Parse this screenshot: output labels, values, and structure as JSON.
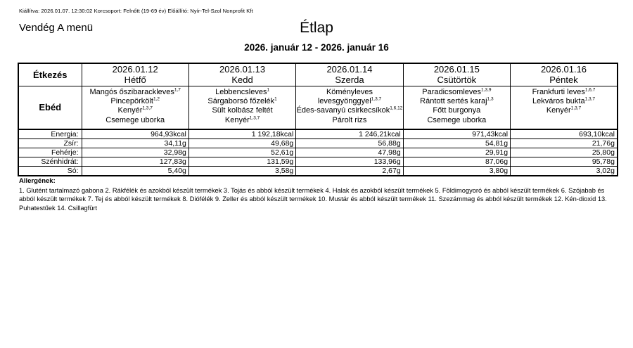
{
  "header": {
    "meta_line": "Kiállítva: 2026.01.07. 12:30:02 Korcsoport: Felnőtt (19-69 év) Előállító: Nyír-Tel-Szol Nonprofit Kft",
    "menu_name": "Vendég A menü",
    "title": "Étlap",
    "date_range": "2026. január 12 - 2026. január 16"
  },
  "table": {
    "corner_header": "Étkezés",
    "meal_row_label": "Ebéd",
    "nutrition_labels": [
      "Energia:",
      "Zsír:",
      "Fehérje:",
      "Szénhidrát:",
      "Só:"
    ],
    "days": [
      {
        "date": "2026.01.12",
        "day": "Hétfő",
        "items": [
          {
            "text": "Mangós őszibarackleves",
            "sup": "1,7"
          },
          {
            "text": "Pincepörkölt",
            "sup": "1,2"
          },
          {
            "text": "Kenyér",
            "sup": "1,3,7"
          },
          {
            "text": "Csemege uborka",
            "sup": ""
          }
        ],
        "nutrition": [
          "964,93kcal",
          "34,11g",
          "32,98g",
          "127,83g",
          "5,40g"
        ]
      },
      {
        "date": "2026.01.13",
        "day": "Kedd",
        "items": [
          {
            "text": "Lebbencsleves",
            "sup": "1"
          },
          {
            "text": "Sárgaborsó főzelék",
            "sup": "1"
          },
          {
            "text": "Sült kolbász feltét",
            "sup": ""
          },
          {
            "text": "Kenyér",
            "sup": "1,3,7"
          }
        ],
        "nutrition": [
          "1 192,18kcal",
          "49,68g",
          "52,61g",
          "131,59g",
          "3,58g"
        ]
      },
      {
        "date": "2026.01.14",
        "day": "Szerda",
        "items": [
          {
            "text": "Köményleves levesgyönggyel",
            "sup": "1,3,7"
          },
          {
            "text": "Édes-savanyú csirkecsíkok",
            "sup": "1,6,12"
          },
          {
            "text": "Párolt rizs",
            "sup": ""
          }
        ],
        "nutrition": [
          "1 246,21kcal",
          "56,88g",
          "47,98g",
          "133,96g",
          "2,67g"
        ]
      },
      {
        "date": "2026.01.15",
        "day": "Csütörtök",
        "items": [
          {
            "text": "Paradicsomleves",
            "sup": "1,3,9"
          },
          {
            "text": "Rántott sertés karaj",
            "sup": "1,3"
          },
          {
            "text": "Főtt burgonya",
            "sup": ""
          },
          {
            "text": "Csemege uborka",
            "sup": ""
          }
        ],
        "nutrition": [
          "971,43kcal",
          "54,81g",
          "29,91g",
          "87,06g",
          "3,80g"
        ]
      },
      {
        "date": "2026.01.16",
        "day": "Péntek",
        "items": [
          {
            "text": "Frankfurti leves",
            "sup": "1,6,7"
          },
          {
            "text": "Lekváros bukta",
            "sup": "1,3,7"
          },
          {
            "text": "Kenyér",
            "sup": "1,3,7"
          }
        ],
        "nutrition": [
          "693,10kcal",
          "21,76g",
          "25,80g",
          "95,78g",
          "3,02g"
        ]
      }
    ]
  },
  "allergens": {
    "heading": "Allergének:",
    "text": "1. Glutént tartalmazó gabona 2. Rákfélék és azokból készült termékek 3. Tojás és abból készült termékek 4. Halak és azokból készült termékek 5. Földimogyoró és abból készült termékek 6. Szójabab és abból készült termékek 7. Tej és abból készült termékek 8. Diófélék 9. Zeller és abból készült termékek 10. Mustár és abból készült termékek 11. Szezámmag és abból készült termékek 12. Kén-dioxid 13. Puhatestűek 14. Csillagfürt"
  }
}
